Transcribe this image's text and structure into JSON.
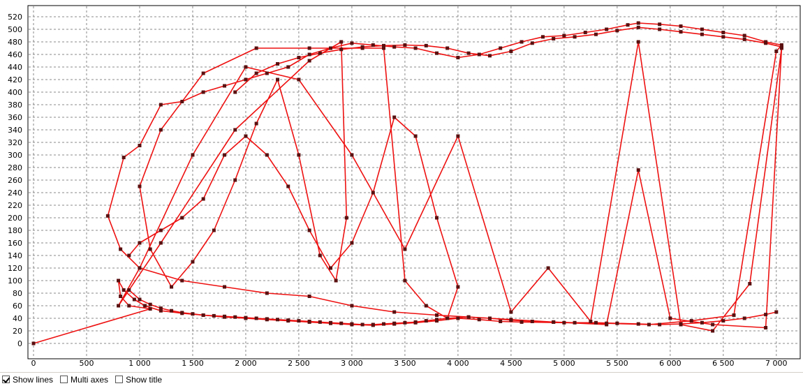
{
  "chart_data": {
    "type": "line",
    "title": "",
    "xlabel": "",
    "ylabel": "",
    "xlim": [
      0,
      7100
    ],
    "ylim": [
      0,
      530
    ],
    "x_ticks": [
      0,
      500,
      1000,
      1500,
      2000,
      2500,
      3000,
      3500,
      4000,
      4500,
      5000,
      5500,
      6000,
      6500,
      7000
    ],
    "x_tick_labels": [
      "0",
      "500",
      "1 000",
      "1 500",
      "2 000",
      "2 500",
      "3 000",
      "3 500",
      "4 000",
      "4 500",
      "5 000",
      "5 500",
      "6 000",
      "6 500",
      "7 000"
    ],
    "y_ticks": [
      0,
      20,
      40,
      60,
      80,
      100,
      120,
      140,
      160,
      180,
      200,
      220,
      240,
      260,
      280,
      300,
      320,
      340,
      360,
      380,
      400,
      420,
      440,
      460,
      480,
      500,
      520
    ],
    "y_tick_labels": [
      "0",
      "20",
      "40",
      "60",
      "80",
      "100",
      "120",
      "140",
      "160",
      "180",
      "200",
      "220",
      "240",
      "260",
      "280",
      "300",
      "320",
      "340",
      "360",
      "380",
      "400",
      "420",
      "440",
      "460",
      "480",
      "500",
      "520"
    ],
    "grid": true,
    "line_color": "#ee1111",
    "marker_color": "#5a1010",
    "series": [
      {
        "x": [
          0,
          1100,
          900,
          820,
          800,
          850,
          950,
          1050,
          1200,
          1400,
          1600,
          1800,
          2000,
          2200,
          2400,
          2600,
          2800,
          3000,
          3200,
          3400,
          3600,
          3800,
          4000,
          4200,
          4400,
          4600,
          5000,
          5400,
          5800,
          6200,
          6600,
          7000,
          7050,
          6900,
          6700,
          6500,
          6300,
          6100,
          5900,
          5700,
          5600,
          5400,
          5200,
          5000,
          4800,
          4600,
          4400,
          4200,
          4000,
          3800,
          3600,
          3400,
          3200,
          3000,
          2800,
          2600,
          2400,
          2200,
          2000,
          1800,
          1600,
          1400,
          1200,
          1000,
          850,
          700,
          820,
          1000,
          1400,
          1800,
          2200,
          2600,
          3000,
          3400,
          3800,
          4100,
          4500,
          4900,
          5400,
          5700,
          6000,
          6400,
          6900,
          7050,
          6750,
          6400,
          6100,
          5700,
          5250,
          4850,
          4500,
          4000,
          3500,
          3000,
          2500,
          2000,
          1500,
          1000,
          800,
          1200,
          1900,
          2600,
          2900,
          2950,
          2850,
          2700,
          2500,
          2300,
          2100,
          1900,
          1700,
          1500,
          1300,
          1100,
          1000,
          1200,
          1600,
          2100,
          2600,
          3100,
          3300,
          3500,
          3700,
          3900,
          4000,
          3800,
          3600,
          3400,
          3200,
          3000,
          2800,
          2600,
          2400,
          2200,
          2000,
          1800,
          1600,
          1400,
          1200,
          1000,
          900
        ],
        "y": [
          0,
          55,
          60,
          75,
          100,
          85,
          70,
          60,
          52,
          48,
          45,
          42,
          40,
          38,
          36,
          34,
          32,
          30,
          29,
          31,
          33,
          36,
          40,
          38,
          35,
          34,
          33,
          32,
          30,
          36,
          45,
          465,
          475,
          480,
          490,
          495,
          500,
          505,
          508,
          510,
          507,
          500,
          495,
          490,
          488,
          480,
          470,
          460,
          455,
          462,
          470,
          472,
          475,
          478,
          470,
          460,
          440,
          430,
          420,
          410,
          400,
          385,
          380,
          315,
          296,
          203,
          150,
          120,
          100,
          90,
          80,
          75,
          60,
          50,
          45,
          42,
          38,
          34,
          30,
          276,
          40,
          30,
          25,
          470,
          95,
          20,
          30,
          480,
          35,
          120,
          50,
          330,
          150,
          300,
          420,
          440,
          300,
          120,
          60,
          160,
          340,
          450,
          480,
          200,
          100,
          140,
          300,
          420,
          350,
          260,
          180,
          130,
          90,
          150,
          250,
          340,
          430,
          470,
          470,
          470,
          470,
          100,
          60,
          40,
          90,
          200,
          330,
          360,
          240,
          160,
          120,
          180,
          250,
          300,
          330,
          300,
          230,
          200,
          180,
          160,
          140
        ]
      },
      {
        "x": [
          900,
          1000,
          1100,
          1200,
          1300,
          1400,
          1500,
          1600,
          1700,
          1800,
          1900,
          2000,
          2100,
          2200,
          2300,
          2400,
          2500,
          2600,
          2700,
          2800,
          2900,
          3000,
          3100,
          3200,
          3300,
          3400,
          3500,
          3600,
          3700,
          3800,
          3900,
          4100,
          4300,
          4500,
          4700,
          4900,
          5100,
          5300,
          5500,
          5700,
          5900,
          6100,
          6300,
          6500,
          6700,
          6900,
          7000
        ],
        "y": [
          85,
          70,
          62,
          56,
          52,
          49,
          47,
          45,
          44,
          43,
          42,
          41,
          40,
          39,
          38,
          37,
          36,
          35,
          34,
          33,
          32,
          31,
          30,
          30,
          31,
          32,
          33,
          34,
          36,
          38,
          40,
          42,
          40,
          37,
          35,
          34,
          33,
          33,
          32,
          31,
          30,
          31,
          33,
          36,
          40,
          46,
          50
        ]
      },
      {
        "x": [
          1900,
          2100,
          2300,
          2500,
          2700,
          2900,
          3100,
          3300,
          3500,
          3700,
          3900,
          4100,
          4300,
          4500,
          4700,
          4900,
          5100,
          5300,
          5500,
          5700,
          5900,
          6100,
          6300,
          6500,
          6700,
          6900,
          7050
        ],
        "y": [
          400,
          430,
          445,
          455,
          462,
          468,
          472,
          474,
          475,
          474,
          470,
          462,
          458,
          465,
          478,
          485,
          488,
          492,
          498,
          503,
          500,
          496,
          492,
          488,
          484,
          478,
          472
        ]
      }
    ]
  },
  "footer": {
    "show_lines_label": "Show lines",
    "show_lines_checked": true,
    "multi_axes_label": "Multi axes",
    "multi_axes_checked": false,
    "show_title_label": "Show title",
    "show_title_checked": false
  }
}
